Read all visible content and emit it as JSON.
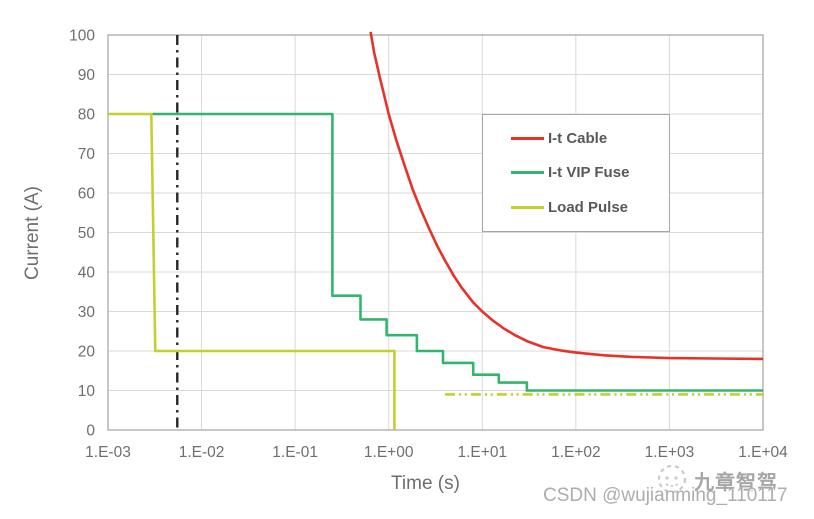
{
  "watermarks": {
    "csdn": "CSDN @wujianming_110117",
    "brand": "九章智驾"
  },
  "chart_data": {
    "type": "line",
    "title": "",
    "xlabel": "Time (s)",
    "ylabel": "Current (A)",
    "x_scale": "log",
    "xlim": [
      0.001,
      10000
    ],
    "ylim": [
      0,
      100
    ],
    "grid": true,
    "legend_position": "inside-upper-right",
    "x_ticks": [
      {
        "value": 0.001,
        "label": "1.E-03"
      },
      {
        "value": 0.01,
        "label": "1.E-02"
      },
      {
        "value": 0.1,
        "label": "1.E-01"
      },
      {
        "value": 1,
        "label": "1.E+00"
      },
      {
        "value": 10,
        "label": "1.E+01"
      },
      {
        "value": 100,
        "label": "1.E+02"
      },
      {
        "value": 1000,
        "label": "1.E+03"
      },
      {
        "value": 10000,
        "label": "1.E+04"
      }
    ],
    "y_ticks": [
      0,
      10,
      20,
      30,
      40,
      50,
      60,
      70,
      80,
      90,
      100
    ],
    "series": [
      {
        "name": "I-t Cable",
        "color": "#e63229",
        "style": "solid",
        "in_legend": true,
        "points": [
          [
            0.64,
            100.8
          ],
          [
            0.7,
            95.5
          ],
          [
            0.8,
            89.5
          ],
          [
            0.9,
            84.5
          ],
          [
            1.0,
            80
          ],
          [
            1.2,
            73.5
          ],
          [
            1.5,
            66.5
          ],
          [
            1.8,
            61
          ],
          [
            2.2,
            55.8
          ],
          [
            2.7,
            51
          ],
          [
            3.3,
            46.6
          ],
          [
            4,
            42.9
          ],
          [
            5,
            38.9
          ],
          [
            6,
            36.1
          ],
          [
            8,
            32.3
          ],
          [
            10,
            30
          ],
          [
            13,
            27.7
          ],
          [
            17,
            25.7
          ],
          [
            22,
            24.1
          ],
          [
            30,
            22.5
          ],
          [
            45,
            21
          ],
          [
            70,
            20.1
          ],
          [
            100,
            19.6
          ],
          [
            200,
            18.9
          ],
          [
            400,
            18.5
          ],
          [
            1000,
            18.2
          ],
          [
            3000,
            18.1
          ],
          [
            10000,
            18
          ]
        ]
      },
      {
        "name": "I-t VIP Fuse",
        "color": "#34b56f",
        "style": "solid",
        "in_legend": true,
        "points": [
          [
            0.003,
            80
          ],
          [
            0.25,
            80
          ],
          [
            0.25,
            34
          ],
          [
            0.5,
            34
          ],
          [
            0.5,
            28
          ],
          [
            0.95,
            28
          ],
          [
            0.95,
            24
          ],
          [
            2,
            24
          ],
          [
            2,
            20
          ],
          [
            3.8,
            20
          ],
          [
            3.8,
            17
          ],
          [
            8,
            17
          ],
          [
            8,
            14
          ],
          [
            15,
            14
          ],
          [
            15,
            12
          ],
          [
            30,
            12
          ],
          [
            30,
            10
          ],
          [
            10000,
            10
          ]
        ]
      },
      {
        "name": "Load Pulse",
        "color": "#c3d02e",
        "style": "solid",
        "in_legend": true,
        "points": [
          [
            0.001,
            80
          ],
          [
            0.0029,
            80
          ],
          [
            0.0032,
            20
          ],
          [
            1.15,
            20
          ],
          [
            1.15,
            0
          ]
        ]
      },
      {
        "name": "Load Pulse",
        "color": "#c3d02e",
        "style": "dash-dot-dot",
        "in_legend": false,
        "points": [
          [
            4,
            9
          ],
          [
            10000,
            9
          ]
        ]
      }
    ],
    "annotations": [
      {
        "type": "vline",
        "x": 0.0055,
        "color": "#262626",
        "style": "dash-dot"
      }
    ]
  }
}
